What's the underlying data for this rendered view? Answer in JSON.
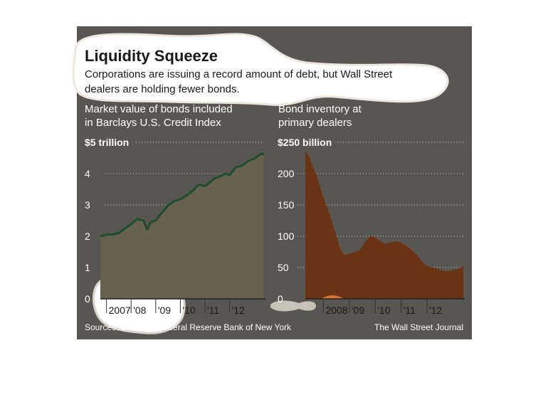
{
  "title": "Liquidity Squeeze",
  "subtitle_lines": [
    "Corporations are issuing a record amount of debt, but Wall Street",
    "dealers are holding fewer bonds."
  ],
  "sources": "Sources: Barclays; Federal Reserve Bank of New York",
  "credit": "The Wall Street Journal",
  "colors": {
    "panel_bg": "#585652",
    "title_bubble": "#ffffff",
    "left_line": "#1f4d2b",
    "left_fill": "#67624f",
    "right_fill": "#6a3414",
    "right_orange": "#d9732f",
    "gridline": "#c8c4bc",
    "text_light": "#ffffff",
    "text_dark": "#1a1a1a"
  },
  "chart_data": [
    {
      "type": "area",
      "title_lines": [
        "Market value of bonds included",
        "in Barclays U.S. Credit Index"
      ],
      "ylim": [
        0,
        5
      ],
      "xlim": [
        2006.75,
        2013.4
      ],
      "yticks": [
        {
          "value": 5,
          "label": "$5 trillion"
        },
        {
          "value": 4,
          "label": "4"
        },
        {
          "value": 3,
          "label": "3"
        },
        {
          "value": 2,
          "label": "2"
        },
        {
          "value": 1,
          "label": "1"
        },
        {
          "value": 0,
          "label": "0"
        }
      ],
      "xticks": [
        {
          "value": 2007.0,
          "label": "2007"
        },
        {
          "value": 2008.0,
          "label": "'08"
        },
        {
          "value": 2009.0,
          "label": "'09"
        },
        {
          "value": 2010.0,
          "label": "'10"
        },
        {
          "value": 2011.0,
          "label": "'11"
        },
        {
          "value": 2012.0,
          "label": "'12"
        }
      ],
      "x": [
        2006.75,
        2007.0,
        2007.25,
        2007.5,
        2007.75,
        2008.0,
        2008.25,
        2008.5,
        2008.65,
        2008.8,
        2009.0,
        2009.25,
        2009.5,
        2009.75,
        2010.0,
        2010.25,
        2010.5,
        2010.75,
        2011.0,
        2011.2,
        2011.4,
        2011.6,
        2011.8,
        2012.0,
        2012.25,
        2012.5,
        2012.75,
        2013.0,
        2013.25,
        2013.4
      ],
      "series": [
        {
          "values": [
            2.0,
            2.05,
            2.06,
            2.1,
            2.25,
            2.38,
            2.55,
            2.5,
            2.22,
            2.45,
            2.5,
            2.75,
            2.98,
            3.12,
            3.18,
            3.3,
            3.45,
            3.65,
            3.6,
            3.72,
            3.85,
            3.9,
            4.0,
            3.95,
            4.2,
            4.25,
            4.4,
            4.48,
            4.62,
            4.62
          ]
        }
      ]
    },
    {
      "type": "area",
      "title_lines": [
        "Bond inventory at",
        "primary dealers"
      ],
      "ylim": [
        0,
        250
      ],
      "xlim": [
        2007.3,
        2013.4
      ],
      "yticks": [
        {
          "value": 250,
          "label": "$250 billion"
        },
        {
          "value": 200,
          "label": "200"
        },
        {
          "value": 150,
          "label": "150"
        },
        {
          "value": 100,
          "label": "100"
        },
        {
          "value": 50,
          "label": "50"
        },
        {
          "value": 0,
          "label": "0"
        }
      ],
      "xticks": [
        {
          "value": 2008.0,
          "label": "2008"
        },
        {
          "value": 2009.0,
          "label": "'09"
        },
        {
          "value": 2010.0,
          "label": "'10"
        },
        {
          "value": 2011.0,
          "label": "'11"
        },
        {
          "value": 2012.0,
          "label": "'12"
        }
      ],
      "x": [
        2007.3,
        2007.45,
        2007.6,
        2007.75,
        2007.9,
        2008.05,
        2008.2,
        2008.35,
        2008.5,
        2008.65,
        2008.8,
        2009.0,
        2009.2,
        2009.4,
        2009.6,
        2009.8,
        2010.0,
        2010.2,
        2010.4,
        2010.6,
        2010.8,
        2011.0,
        2011.2,
        2011.4,
        2011.6,
        2011.8,
        2012.0,
        2012.2,
        2012.4,
        2012.6,
        2012.8,
        2013.0,
        2013.2,
        2013.4
      ],
      "series": [
        {
          "values": [
            235,
            228,
            210,
            195,
            175,
            155,
            140,
            120,
            100,
            80,
            70,
            72,
            75,
            78,
            90,
            100,
            98,
            92,
            88,
            90,
            92,
            90,
            85,
            78,
            70,
            60,
            52,
            50,
            48,
            45,
            44,
            46,
            48,
            52
          ]
        }
      ]
    }
  ]
}
